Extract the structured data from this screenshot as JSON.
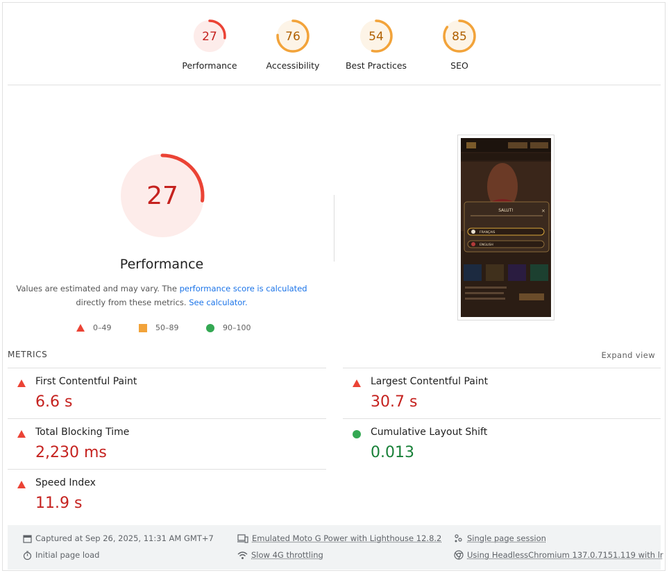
{
  "top_gauges": [
    {
      "score": "27",
      "label": "Performance",
      "fraction": 0.27,
      "color": "#eb4335",
      "bg": "#fdecea"
    },
    {
      "score": "76",
      "label": "Accessibility",
      "fraction": 0.76,
      "color": "#f2a33a",
      "bg": "#fdf4e7"
    },
    {
      "score": "54",
      "label": "Best Practices",
      "fraction": 0.54,
      "color": "#f2a33a",
      "bg": "#fdf4e7"
    },
    {
      "score": "85",
      "label": "SEO",
      "fraction": 0.85,
      "color": "#f2a33a",
      "bg": "#fdf4e7"
    }
  ],
  "main": {
    "score": "27",
    "fraction": 0.27,
    "title": "Performance",
    "note_part1": "Values are estimated and may vary. The ",
    "note_link1": "performance score is calculated",
    "note_part2": "directly from these metrics. ",
    "note_link2": "See calculator.",
    "legend": [
      {
        "label": "0–49",
        "shape": "triangle",
        "color": "#eb4335"
      },
      {
        "label": "50–89",
        "shape": "square",
        "color": "#f2a33a"
      },
      {
        "label": "90–100",
        "shape": "circle",
        "color": "#34a853"
      }
    ]
  },
  "thumbnail": {
    "modal_title": "SALUT!",
    "option_1": "FRANÇAIS",
    "option_2": "ENGLISH"
  },
  "metrics": {
    "title": "METRICS",
    "expand": "Expand view",
    "items": [
      {
        "name": "First Contentful Paint",
        "value": "6.6 s",
        "status": "fail"
      },
      {
        "name": "Largest Contentful Paint",
        "value": "30.7 s",
        "status": "fail"
      },
      {
        "name": "Total Blocking Time",
        "value": "2,230 ms",
        "status": "fail"
      },
      {
        "name": "Cumulative Layout Shift",
        "value": "0.013",
        "status": "pass"
      },
      {
        "name": "Speed Index",
        "value": "11.9 s",
        "status": "fail"
      }
    ]
  },
  "footer": {
    "captured": "Captured at Sep 26, 2025, 11:31 AM GMT+7",
    "load": "Initial page load",
    "device": "Emulated Moto G Power with Lighthouse 12.8.2",
    "throttle": "Slow 4G throttling",
    "session": "Single page session",
    "browser": "Using HeadlessChromium 137.0.7151.119 with lr"
  }
}
